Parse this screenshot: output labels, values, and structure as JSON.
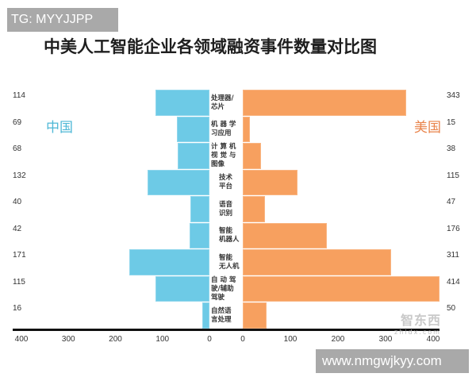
{
  "watermark_top": "TG: MYYJJPP",
  "watermark_bottom": "www.nmgwjkyy.com",
  "logo_watermark": "智东西",
  "logo_watermark_sub": "zhidx.com",
  "colors": {
    "china": "#6dcae6",
    "usa": "#f7a05f",
    "china_label": "#4fb8d6",
    "usa_label": "#e9834a"
  },
  "chart_data": {
    "type": "bar",
    "orientation": "horizontal-butterfly",
    "title": "中美人工智能企业各领域融资事件数量对比图",
    "categories": [
      "处理器/芯片",
      "机器学习应用",
      "计算机视觉与图像",
      "技术平台",
      "语音识别",
      "智能机器人",
      "智能无人机",
      "自动驾驶/辅助驾驶",
      "自然语言处理"
    ],
    "category_lines": [
      [
        "处理器/",
        "芯片"
      ],
      [
        "机 器 学",
        "习应用"
      ],
      [
        "计 算 机",
        "视 觉 与",
        "图像"
      ],
      [
        "技术",
        "平台"
      ],
      [
        "语音",
        "识别"
      ],
      [
        "智能",
        "机器人"
      ],
      [
        "智能",
        "无人机"
      ],
      [
        "自 动 驾",
        "驶/辅助",
        "驾驶"
      ],
      [
        "自然语",
        "言处理"
      ]
    ],
    "series": [
      {
        "name": "中国",
        "side": "left",
        "values": [
          114,
          69,
          68,
          132,
          40,
          42,
          171,
          115,
          16
        ]
      },
      {
        "name": "美国",
        "side": "right",
        "values": [
          343,
          15,
          38,
          115,
          47,
          176,
          311,
          414,
          50
        ]
      }
    ],
    "x_ticks_left": [
      "400",
      "300",
      "200",
      "100",
      "0"
    ],
    "x_ticks_right": [
      "0",
      "100",
      "200",
      "300",
      "400"
    ],
    "xlim": [
      0,
      400
    ],
    "grid": false,
    "legend_position": "inline"
  }
}
